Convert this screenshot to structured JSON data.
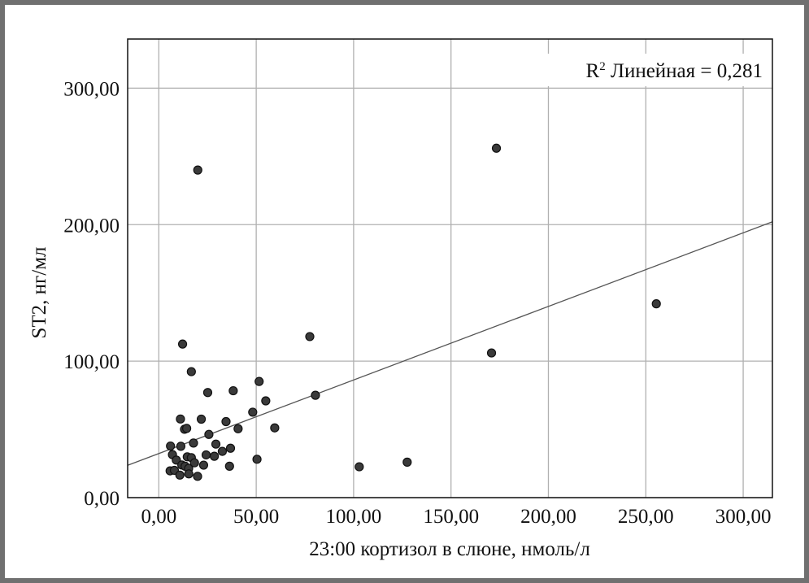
{
  "chart_data": {
    "type": "scatter",
    "title": "",
    "xlabel": "23:00 кортизол в слюне, нмоль/л",
    "ylabel": "ST2, нг/мл",
    "xlim": [
      -16,
      315
    ],
    "ylim": [
      0,
      336
    ],
    "x_ticks": [
      0,
      50,
      100,
      150,
      200,
      250,
      300
    ],
    "x_tick_labels": [
      "0,00",
      "50,00",
      "100,00",
      "150,00",
      "200,00",
      "250,00",
      "300,00"
    ],
    "y_ticks": [
      0,
      100,
      200,
      300
    ],
    "y_tick_labels": [
      "0,00",
      "100,00",
      "200,00",
      "300,00"
    ],
    "grid": true,
    "annotation": {
      "prefix": "R",
      "sup": "2",
      "text": " Линейная = 0,281"
    },
    "fit_line": {
      "slope": 0.539,
      "intercept": 32.3
    },
    "colors": {
      "point": "#3a3a3a",
      "grid": "#b0b0b0",
      "line": "#555555",
      "frame": "#707070"
    },
    "points": [
      [
        20,
        240
      ],
      [
        173.3,
        256
      ],
      [
        255.4,
        142
      ],
      [
        170.8,
        106
      ],
      [
        77.5,
        118
      ],
      [
        80.4,
        75
      ],
      [
        102.9,
        22.6
      ],
      [
        127.5,
        26
      ],
      [
        12.2,
        112.5
      ],
      [
        16.7,
        92.3
      ],
      [
        25.1,
        77
      ],
      [
        38.2,
        78.3
      ],
      [
        51.5,
        85.1
      ],
      [
        54.9,
        70.9
      ],
      [
        48.2,
        62.6
      ],
      [
        59.5,
        51.1
      ],
      [
        11.1,
        57.6
      ],
      [
        21.8,
        57.5
      ],
      [
        34.5,
        55.7
      ],
      [
        13.2,
        50.1
      ],
      [
        14.3,
        50.7
      ],
      [
        40.7,
        50.5
      ],
      [
        25.7,
        46.3
      ],
      [
        17.8,
        40
      ],
      [
        29.3,
        39.2
      ],
      [
        6,
        37.8
      ],
      [
        11.3,
        37.6
      ],
      [
        36.8,
        36.2
      ],
      [
        32.6,
        33.9
      ],
      [
        7,
        31.5
      ],
      [
        24.3,
        31.3
      ],
      [
        28.5,
        30.3
      ],
      [
        50.4,
        28.1
      ],
      [
        9,
        27.5
      ],
      [
        14.6,
        29.9
      ],
      [
        16.7,
        29.3
      ],
      [
        18.3,
        25.5
      ],
      [
        23,
        23.8
      ],
      [
        36.3,
        23
      ],
      [
        5.8,
        19.6
      ],
      [
        8,
        20
      ],
      [
        11.8,
        23.9
      ],
      [
        13.5,
        23
      ],
      [
        15.3,
        21.4
      ],
      [
        10.8,
        16.5
      ],
      [
        15.4,
        17.4
      ],
      [
        19.9,
        15.6
      ]
    ]
  }
}
